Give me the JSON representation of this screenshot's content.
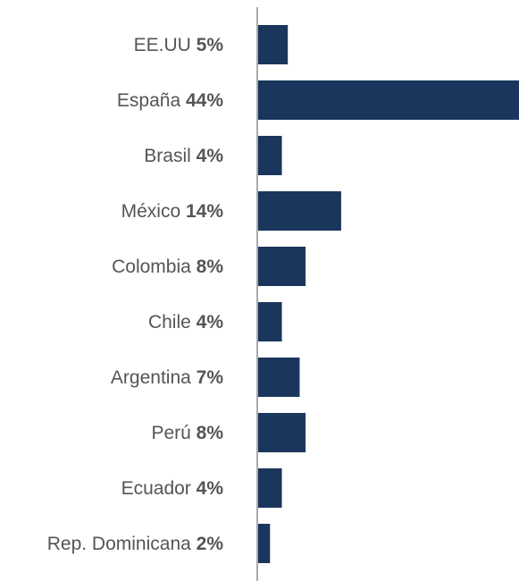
{
  "chart_data": {
    "type": "bar",
    "orientation": "horizontal",
    "categories": [
      "EE.UU",
      "España",
      "Brasil",
      "México",
      "Colombia",
      "Chile",
      "Argentina",
      "Perú",
      "Ecuador",
      "Rep. Dominicana"
    ],
    "values": [
      5,
      44,
      4,
      14,
      8,
      4,
      7,
      8,
      4,
      2
    ],
    "value_labels": [
      "5%",
      "44%",
      "4%",
      "14%",
      "8%",
      "4%",
      "7%",
      "8%",
      "4%",
      "2%"
    ],
    "unit": "%",
    "title": "",
    "xlabel": "",
    "ylabel": "",
    "grid": false,
    "legend": "none",
    "bar_color": "#1b365d",
    "label_color": "#555555",
    "axis_color": "#555555"
  }
}
